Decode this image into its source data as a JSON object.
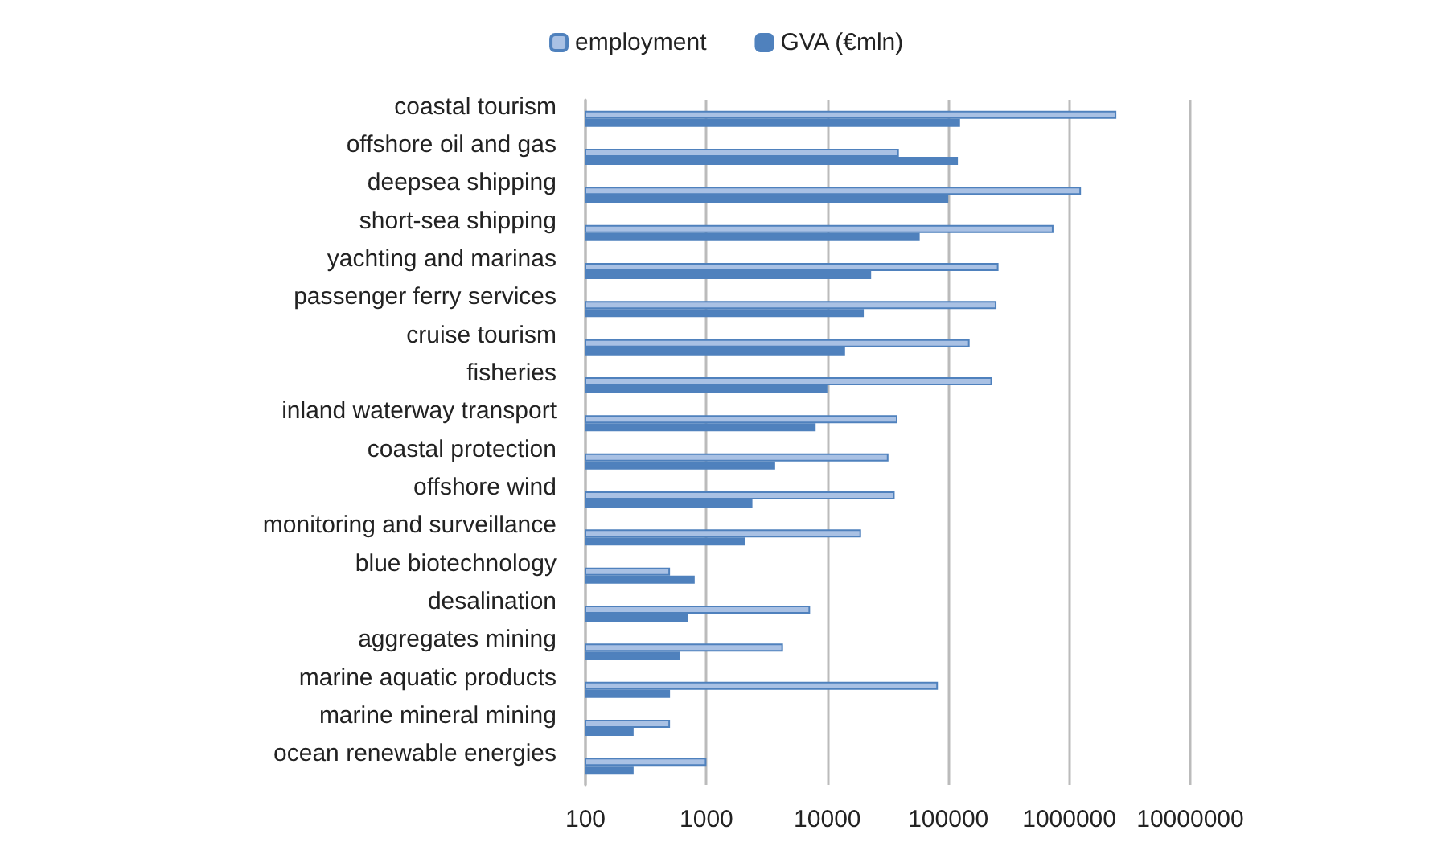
{
  "chart_data": {
    "type": "bar",
    "orientation": "horizontal",
    "log": "x",
    "grid": "x",
    "legend": "top",
    "categories": [
      "coastal tourism",
      "offshore oil and gas",
      "deepsea shipping",
      "short-sea shipping",
      "yachting and marinas",
      "passenger ferry services",
      "cruise tourism",
      "fisheries",
      "inland waterway transport",
      "coastal protection",
      "offshore wind",
      "monitoring and surveillance",
      "blue biotechnology",
      "desalination",
      "aggregates mining",
      "marine aquatic products",
      "marine mineral mining",
      "ocean renewable energies"
    ],
    "series": [
      {
        "name": "employment",
        "color": "#a9c1e4",
        "values": [
          2450000,
          39000,
          1250000,
          740000,
          260000,
          250000,
          150000,
          230000,
          38000,
          32000,
          36000,
          19000,
          500,
          7200,
          4300,
          82000,
          500,
          1000
        ]
      },
      {
        "name": "GVA (€mln)",
        "color": "#4f81bd",
        "values": [
          125000,
          120000,
          100000,
          58000,
          23000,
          20000,
          14000,
          10000,
          8000,
          3700,
          2400,
          2100,
          800,
          700,
          600,
          500,
          250,
          250
        ]
      }
    ],
    "xlim": [
      100,
      10000000
    ],
    "xticks": [
      100,
      1000,
      10000,
      100000,
      1000000,
      10000000
    ]
  }
}
